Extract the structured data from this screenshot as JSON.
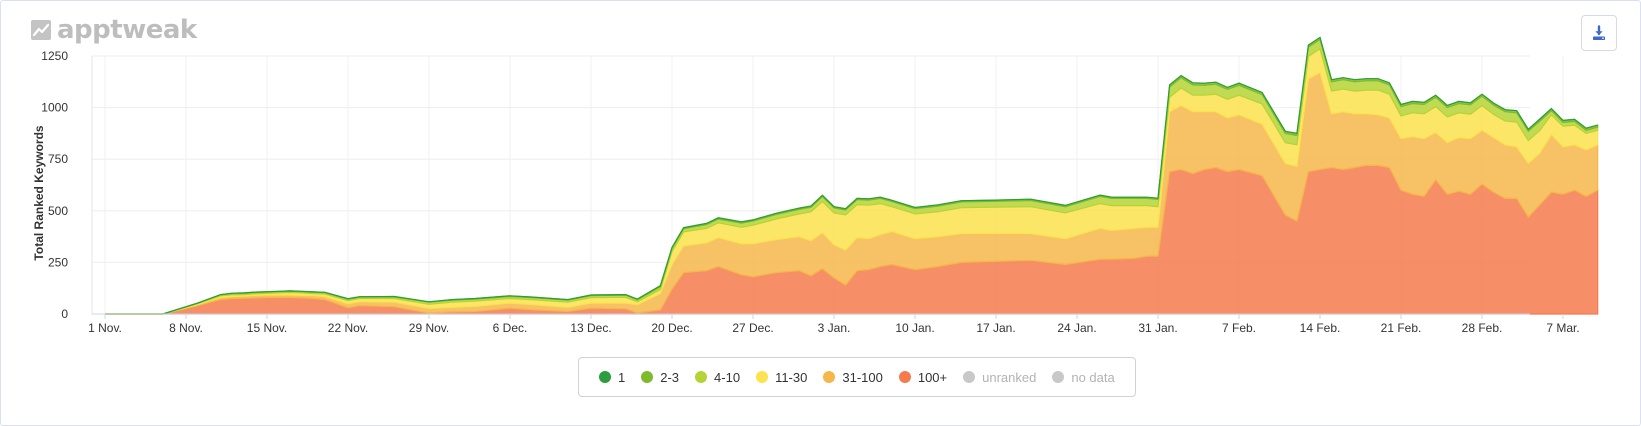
{
  "brand": {
    "name": "apptweak"
  },
  "toolbar": {
    "download_icon": "download-icon"
  },
  "chart_data": {
    "type": "area",
    "stacked": true,
    "ylabel": "Total Ranked Keywords",
    "xlabel": "",
    "ylim": [
      0,
      1250
    ],
    "yticks": [
      0,
      250,
      500,
      750,
      1000,
      1250
    ],
    "grid": true,
    "legend_position": "bottom",
    "x_start": "1 Nov.",
    "x_tick_labels": [
      "1 Nov.",
      "8 Nov.",
      "15 Nov.",
      "22 Nov.",
      "29 Nov.",
      "6 Dec.",
      "13 Dec.",
      "20 Dec.",
      "27 Dec.",
      "3 Jan.",
      "10 Jan.",
      "17 Jan.",
      "24 Jan.",
      "31 Jan.",
      "7 Feb.",
      "14 Feb.",
      "21 Feb.",
      "28 Feb.",
      "7 Mar."
    ],
    "x_tick_days": [
      0,
      7,
      14,
      21,
      28,
      35,
      42,
      49,
      56,
      63,
      70,
      77,
      84,
      91,
      98,
      105,
      112,
      119,
      126
    ],
    "x_days": [
      0,
      5,
      8,
      10,
      11,
      12,
      13,
      14,
      15,
      16,
      17,
      18,
      19,
      21,
      22,
      25,
      28,
      30,
      32,
      35,
      37,
      40,
      42,
      45,
      46,
      48,
      49,
      50,
      52,
      53,
      55,
      56,
      58,
      60,
      61,
      62,
      63,
      64,
      65,
      66,
      67,
      68,
      70,
      72,
      74,
      77,
      80,
      83,
      86,
      87,
      89,
      90,
      91,
      92,
      93,
      94,
      95,
      96,
      97,
      98,
      100,
      102,
      103,
      104,
      105,
      106,
      107,
      108,
      109,
      110,
      111,
      112,
      113,
      114,
      115,
      116,
      117,
      118,
      119,
      120,
      121,
      122,
      123,
      124,
      125,
      126,
      127,
      128,
      129
    ],
    "series": [
      {
        "name": "1",
        "color": "#2a9d3f",
        "values": [
          0,
          0,
          0,
          0,
          0,
          0,
          0,
          0,
          0,
          0,
          0,
          0,
          0,
          0,
          0,
          0,
          0,
          0,
          0,
          0,
          0,
          0,
          0,
          0,
          0,
          0,
          0,
          0,
          0,
          0,
          0,
          0,
          0,
          0,
          0,
          0,
          0,
          0,
          0,
          0,
          0,
          0,
          0,
          0,
          0,
          0,
          0,
          0,
          0,
          0,
          0,
          0,
          0,
          0,
          0,
          0,
          0,
          0,
          0,
          0,
          0,
          0,
          0,
          0,
          0,
          0,
          0,
          0,
          0,
          0,
          0,
          0,
          0,
          0,
          0,
          0,
          0,
          0,
          0,
          0,
          0,
          0,
          0,
          0,
          0,
          0,
          0,
          0,
          0
        ]
      },
      {
        "name": "2-3",
        "color": "#7dbb2c",
        "values": [
          0,
          0,
          1,
          1,
          2,
          2,
          2,
          2,
          2,
          2,
          2,
          2,
          2,
          2,
          2,
          2,
          2,
          3,
          3,
          3,
          3,
          3,
          3,
          3,
          3,
          5,
          5,
          5,
          6,
          6,
          6,
          6,
          6,
          6,
          6,
          6,
          6,
          6,
          6,
          6,
          6,
          6,
          6,
          6,
          6,
          6,
          6,
          6,
          6,
          6,
          6,
          6,
          6,
          10,
          10,
          10,
          10,
          10,
          10,
          10,
          10,
          10,
          10,
          10,
          10,
          10,
          10,
          10,
          10,
          10,
          10,
          10,
          10,
          10,
          10,
          10,
          10,
          10,
          10,
          10,
          10,
          10,
          10,
          10,
          10,
          10,
          10,
          10,
          10
        ]
      },
      {
        "name": "4-10",
        "color": "#b6d336",
        "values": [
          0,
          0,
          2,
          5,
          6,
          6,
          6,
          6,
          6,
          6,
          6,
          6,
          6,
          7,
          7,
          8,
          10,
          10,
          10,
          10,
          10,
          10,
          10,
          10,
          10,
          14,
          15,
          15,
          18,
          18,
          20,
          20,
          22,
          22,
          22,
          24,
          24,
          24,
          24,
          25,
          25,
          25,
          25,
          28,
          28,
          28,
          30,
          30,
          35,
          35,
          35,
          35,
          35,
          50,
          50,
          50,
          48,
          48,
          48,
          48,
          45,
          45,
          45,
          45,
          45,
          45,
          45,
          45,
          45,
          45,
          45,
          45,
          45,
          45,
          45,
          45,
          45,
          45,
          45,
          45,
          45,
          45,
          45,
          45,
          20,
          18,
          18,
          15,
          15
        ]
      },
      {
        "name": "11-30",
        "color": "#fbe24e",
        "values": [
          0,
          0,
          5,
          8,
          8,
          8,
          8,
          8,
          10,
          12,
          12,
          10,
          12,
          15,
          15,
          18,
          20,
          25,
          25,
          22,
          24,
          25,
          26,
          28,
          14,
          18,
          62,
          68,
          70,
          72,
          80,
          90,
          100,
          110,
          140,
          150,
          155,
          170,
          160,
          162,
          150,
          120,
          120,
          120,
          125,
          128,
          130,
          125,
          120,
          120,
          110,
          105,
          100,
          70,
          85,
          80,
          80,
          85,
          90,
          95,
          98,
          100,
          105,
          108,
          115,
          110,
          110,
          110,
          115,
          120,
          115,
          110,
          115,
          120,
          125,
          125,
          120,
          118,
          120,
          112,
          115,
          120,
          110,
          110,
          95,
          100,
          95,
          80,
          70
        ]
      },
      {
        "name": "31-100",
        "color": "#f6b64a",
        "values": [
          0,
          0,
          5,
          10,
          10,
          10,
          12,
          12,
          12,
          12,
          12,
          14,
          15,
          20,
          20,
          22,
          22,
          22,
          25,
          25,
          25,
          20,
          25,
          28,
          40,
          80,
          120,
          130,
          135,
          140,
          150,
          160,
          160,
          165,
          170,
          175,
          160,
          170,
          160,
          150,
          155,
          160,
          150,
          145,
          140,
          135,
          130,
          125,
          150,
          140,
          145,
          140,
          140,
          290,
          310,
          300,
          280,
          270,
          260,
          265,
          250,
          250,
          265,
          450,
          470,
          260,
          280,
          260,
          250,
          245,
          240,
          250,
          280,
          280,
          230,
          250,
          260,
          270,
          260,
          265,
          260,
          250,
          260,
          250,
          280,
          230,
          220,
          225,
          220
        ]
      },
      {
        "name": "100+",
        "color": "#f47b4e",
        "values": [
          0,
          0,
          40,
          70,
          75,
          76,
          78,
          80,
          80,
          80,
          78,
          75,
          70,
          30,
          40,
          35,
          5,
          10,
          12,
          28,
          20,
          12,
          28,
          25,
          5,
          20,
          120,
          200,
          210,
          230,
          190,
          180,
          200,
          210,
          185,
          220,
          175,
          140,
          210,
          215,
          230,
          240,
          215,
          230,
          250,
          255,
          260,
          240,
          265,
          265,
          270,
          280,
          280,
          690,
          700,
          680,
          700,
          710,
          690,
          700,
          670,
          480,
          450,
          690,
          700,
          710,
          700,
          710,
          720,
          720,
          710,
          600,
          580,
          570,
          650,
          580,
          595,
          580,
          630,
          590,
          560,
          560,
          470,
          530,
          590,
          580,
          600,
          570,
          600
        ]
      },
      {
        "name": "unranked",
        "color": "#c8c8c8",
        "disabled": true,
        "values": []
      },
      {
        "name": "no data",
        "color": "#c8c8c8",
        "disabled": true,
        "values": []
      }
    ]
  }
}
